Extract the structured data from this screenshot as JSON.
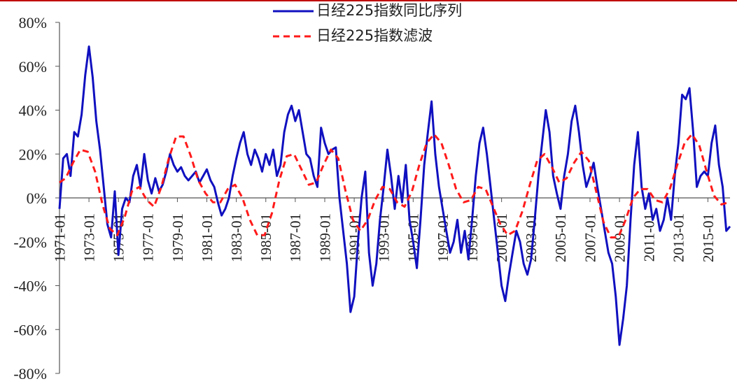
{
  "colors": {
    "accent_top": "#c00000",
    "series1": "#1010c0",
    "series2": "#ff1a1a",
    "axis": "#555555"
  },
  "chart_data": {
    "type": "line",
    "title": "",
    "xlabel": "",
    "ylabel": "",
    "ylim": [
      -0.8,
      0.8
    ],
    "xlim": [
      "1971-01",
      "2016-07"
    ],
    "y_ticks": [
      "80%",
      "60%",
      "40%",
      "20%",
      "0%",
      "-20%",
      "-40%",
      "-60%",
      "-80%"
    ],
    "y_tick_values": [
      0.8,
      0.6,
      0.4,
      0.2,
      0.0,
      -0.2,
      -0.4,
      -0.6,
      -0.8
    ],
    "x_ticks": [
      "1971-01",
      "1973-01",
      "1975-01",
      "1977-01",
      "1979-01",
      "1981-01",
      "1983-01",
      "1985-01",
      "1987-01",
      "1989-01",
      "1991-01",
      "1993-01",
      "1995-01",
      "1997-01",
      "1999-01",
      "2001-01",
      "2003-01",
      "2005-01",
      "2007-01",
      "2009-01",
      "2011-01",
      "2013-01",
      "2015-01"
    ],
    "grid": false,
    "legend": {
      "placement": "top-center"
    },
    "series": [
      {
        "name": "日经225指数同比序列",
        "style": "solid",
        "points": [
          [
            "1971-01",
            -0.05
          ],
          [
            "1971-04",
            0.18
          ],
          [
            "1971-07",
            0.2
          ],
          [
            "1971-10",
            0.1
          ],
          [
            "1972-01",
            0.3
          ],
          [
            "1972-04",
            0.28
          ],
          [
            "1972-07",
            0.38
          ],
          [
            "1972-10",
            0.56
          ],
          [
            "1973-01",
            0.69
          ],
          [
            "1973-04",
            0.55
          ],
          [
            "1973-07",
            0.35
          ],
          [
            "1973-10",
            0.22
          ],
          [
            "1974-01",
            0.05
          ],
          [
            "1974-04",
            -0.12
          ],
          [
            "1974-07",
            -0.18
          ],
          [
            "1974-10",
            0.03
          ],
          [
            "1975-01",
            -0.26
          ],
          [
            "1975-04",
            -0.05
          ],
          [
            "1975-07",
            0.0
          ],
          [
            "1975-10",
            -0.02
          ],
          [
            "1976-01",
            0.1
          ],
          [
            "1976-04",
            0.15
          ],
          [
            "1976-07",
            0.05
          ],
          [
            "1976-10",
            0.2
          ],
          [
            "1977-01",
            0.08
          ],
          [
            "1977-04",
            0.02
          ],
          [
            "1977-07",
            0.09
          ],
          [
            "1977-10",
            0.03
          ],
          [
            "1978-01",
            0.06
          ],
          [
            "1978-04",
            0.12
          ],
          [
            "1978-07",
            0.2
          ],
          [
            "1978-10",
            0.15
          ],
          [
            "1979-01",
            0.12
          ],
          [
            "1979-04",
            0.14
          ],
          [
            "1979-07",
            0.1
          ],
          [
            "1979-10",
            0.08
          ],
          [
            "1980-01",
            0.1
          ],
          [
            "1980-04",
            0.12
          ],
          [
            "1980-07",
            0.07
          ],
          [
            "1980-10",
            0.1
          ],
          [
            "1981-01",
            0.13
          ],
          [
            "1981-04",
            0.08
          ],
          [
            "1981-07",
            0.05
          ],
          [
            "1981-10",
            -0.02
          ],
          [
            "1982-01",
            -0.08
          ],
          [
            "1982-04",
            -0.05
          ],
          [
            "1982-07",
            0.0
          ],
          [
            "1982-10",
            0.1
          ],
          [
            "1983-01",
            0.18
          ],
          [
            "1983-04",
            0.25
          ],
          [
            "1983-07",
            0.3
          ],
          [
            "1983-10",
            0.2
          ],
          [
            "1984-01",
            0.15
          ],
          [
            "1984-04",
            0.22
          ],
          [
            "1984-07",
            0.18
          ],
          [
            "1984-10",
            0.12
          ],
          [
            "1985-01",
            0.2
          ],
          [
            "1985-04",
            0.15
          ],
          [
            "1985-07",
            0.22
          ],
          [
            "1985-10",
            0.1
          ],
          [
            "1986-01",
            0.15
          ],
          [
            "1986-04",
            0.3
          ],
          [
            "1986-07",
            0.38
          ],
          [
            "1986-10",
            0.42
          ],
          [
            "1987-01",
            0.35
          ],
          [
            "1987-04",
            0.4
          ],
          [
            "1987-07",
            0.3
          ],
          [
            "1987-10",
            0.2
          ],
          [
            "1988-01",
            0.18
          ],
          [
            "1988-04",
            0.1
          ],
          [
            "1988-07",
            0.05
          ],
          [
            "1988-10",
            0.32
          ],
          [
            "1989-01",
            0.25
          ],
          [
            "1989-04",
            0.2
          ],
          [
            "1989-07",
            0.22
          ],
          [
            "1989-10",
            0.23
          ],
          [
            "1990-01",
            0.0
          ],
          [
            "1990-04",
            -0.15
          ],
          [
            "1990-07",
            -0.3
          ],
          [
            "1990-10",
            -0.52
          ],
          [
            "1991-01",
            -0.45
          ],
          [
            "1991-04",
            -0.2
          ],
          [
            "1991-07",
            0.0
          ],
          [
            "1991-10",
            0.12
          ],
          [
            "1992-01",
            -0.25
          ],
          [
            "1992-04",
            -0.4
          ],
          [
            "1992-07",
            -0.3
          ],
          [
            "1992-10",
            -0.1
          ],
          [
            "1993-01",
            0.05
          ],
          [
            "1993-04",
            0.22
          ],
          [
            "1993-07",
            0.1
          ],
          [
            "1993-10",
            -0.05
          ],
          [
            "1994-01",
            0.1
          ],
          [
            "1994-04",
            -0.02
          ],
          [
            "1994-07",
            0.15
          ],
          [
            "1994-10",
            -0.1
          ],
          [
            "1995-01",
            -0.2
          ],
          [
            "1995-04",
            -0.32
          ],
          [
            "1995-07",
            -0.1
          ],
          [
            "1995-10",
            0.15
          ],
          [
            "1996-01",
            0.3
          ],
          [
            "1996-04",
            0.44
          ],
          [
            "1996-07",
            0.2
          ],
          [
            "1996-10",
            0.05
          ],
          [
            "1997-01",
            -0.05
          ],
          [
            "1997-04",
            -0.15
          ],
          [
            "1997-07",
            -0.25
          ],
          [
            "1997-10",
            -0.2
          ],
          [
            "1998-01",
            -0.1
          ],
          [
            "1998-04",
            -0.25
          ],
          [
            "1998-07",
            -0.15
          ],
          [
            "1998-10",
            -0.28
          ],
          [
            "1999-01",
            -0.1
          ],
          [
            "1999-04",
            0.1
          ],
          [
            "1999-07",
            0.25
          ],
          [
            "1999-10",
            0.32
          ],
          [
            "2000-01",
            0.2
          ],
          [
            "2000-04",
            0.05
          ],
          [
            "2000-07",
            -0.1
          ],
          [
            "2000-10",
            -0.25
          ],
          [
            "2001-01",
            -0.4
          ],
          [
            "2001-04",
            -0.47
          ],
          [
            "2001-07",
            -0.35
          ],
          [
            "2001-10",
            -0.25
          ],
          [
            "2002-01",
            -0.15
          ],
          [
            "2002-04",
            -0.2
          ],
          [
            "2002-07",
            -0.3
          ],
          [
            "2002-10",
            -0.35
          ],
          [
            "2003-01",
            -0.28
          ],
          [
            "2003-04",
            -0.1
          ],
          [
            "2003-07",
            0.1
          ],
          [
            "2003-10",
            0.25
          ],
          [
            "2004-01",
            0.4
          ],
          [
            "2004-04",
            0.3
          ],
          [
            "2004-07",
            0.1
          ],
          [
            "2004-10",
            0.02
          ],
          [
            "2005-01",
            -0.05
          ],
          [
            "2005-04",
            0.1
          ],
          [
            "2005-07",
            0.2
          ],
          [
            "2005-10",
            0.35
          ],
          [
            "2006-01",
            0.42
          ],
          [
            "2006-04",
            0.3
          ],
          [
            "2006-07",
            0.15
          ],
          [
            "2006-10",
            0.05
          ],
          [
            "2007-01",
            0.1
          ],
          [
            "2007-04",
            0.16
          ],
          [
            "2007-07",
            0.05
          ],
          [
            "2007-10",
            -0.05
          ],
          [
            "2008-01",
            -0.15
          ],
          [
            "2008-04",
            -0.25
          ],
          [
            "2008-07",
            -0.3
          ],
          [
            "2008-10",
            -0.45
          ],
          [
            "2009-01",
            -0.67
          ],
          [
            "2009-04",
            -0.55
          ],
          [
            "2009-07",
            -0.4
          ],
          [
            "2009-10",
            -0.1
          ],
          [
            "2010-01",
            0.15
          ],
          [
            "2010-04",
            0.3
          ],
          [
            "2010-07",
            0.05
          ],
          [
            "2010-10",
            -0.05
          ],
          [
            "2011-01",
            0.02
          ],
          [
            "2011-04",
            -0.1
          ],
          [
            "2011-07",
            -0.05
          ],
          [
            "2011-10",
            -0.15
          ],
          [
            "2012-01",
            -0.1
          ],
          [
            "2012-04",
            0.0
          ],
          [
            "2012-07",
            -0.1
          ],
          [
            "2012-10",
            0.1
          ],
          [
            "2013-01",
            0.25
          ],
          [
            "2013-04",
            0.47
          ],
          [
            "2013-07",
            0.45
          ],
          [
            "2013-10",
            0.5
          ],
          [
            "2014-01",
            0.3
          ],
          [
            "2014-04",
            0.05
          ],
          [
            "2014-07",
            0.1
          ],
          [
            "2014-10",
            0.12
          ],
          [
            "2015-01",
            0.1
          ],
          [
            "2015-04",
            0.25
          ],
          [
            "2015-07",
            0.33
          ],
          [
            "2015-10",
            0.15
          ],
          [
            "2016-01",
            0.05
          ],
          [
            "2016-04",
            -0.15
          ],
          [
            "2016-07",
            -0.13
          ]
        ]
      },
      {
        "name": "日经225指数滤波",
        "style": "dashed",
        "points": [
          [
            "1971-01",
            0.07
          ],
          [
            "1971-06",
            0.09
          ],
          [
            "1971-12",
            0.16
          ],
          [
            "1972-06",
            0.22
          ],
          [
            "1972-12",
            0.21
          ],
          [
            "1973-06",
            0.12
          ],
          [
            "1973-12",
            -0.03
          ],
          [
            "1974-06",
            -0.14
          ],
          [
            "1974-12",
            -0.17
          ],
          [
            "1975-06",
            -0.09
          ],
          [
            "1975-12",
            0.03
          ],
          [
            "1976-06",
            0.05
          ],
          [
            "1976-12",
            -0.01
          ],
          [
            "1977-06",
            -0.04
          ],
          [
            "1977-12",
            0.05
          ],
          [
            "1978-06",
            0.18
          ],
          [
            "1978-12",
            0.28
          ],
          [
            "1979-06",
            0.28
          ],
          [
            "1979-12",
            0.19
          ],
          [
            "1980-06",
            0.08
          ],
          [
            "1980-12",
            0.02
          ],
          [
            "1981-06",
            -0.02
          ],
          [
            "1981-12",
            -0.02
          ],
          [
            "1982-06",
            0.04
          ],
          [
            "1982-12",
            0.06
          ],
          [
            "1983-06",
            0.0
          ],
          [
            "1983-12",
            -0.1
          ],
          [
            "1984-06",
            -0.17
          ],
          [
            "1984-12",
            -0.17
          ],
          [
            "1985-06",
            -0.07
          ],
          [
            "1985-12",
            0.08
          ],
          [
            "1986-06",
            0.19
          ],
          [
            "1986-12",
            0.2
          ],
          [
            "1987-06",
            0.13
          ],
          [
            "1987-12",
            0.06
          ],
          [
            "1988-06",
            0.07
          ],
          [
            "1988-12",
            0.15
          ],
          [
            "1989-06",
            0.22
          ],
          [
            "1989-12",
            0.18
          ],
          [
            "1990-06",
            0.03
          ],
          [
            "1990-12",
            -0.1
          ],
          [
            "1991-06",
            -0.15
          ],
          [
            "1991-12",
            -0.1
          ],
          [
            "1992-06",
            -0.01
          ],
          [
            "1992-12",
            0.05
          ],
          [
            "1993-06",
            0.04
          ],
          [
            "1993-12",
            -0.02
          ],
          [
            "1994-06",
            -0.04
          ],
          [
            "1994-12",
            0.03
          ],
          [
            "1995-06",
            0.15
          ],
          [
            "1995-12",
            0.25
          ],
          [
            "1996-06",
            0.29
          ],
          [
            "1996-12",
            0.25
          ],
          [
            "1997-06",
            0.15
          ],
          [
            "1997-12",
            0.04
          ],
          [
            "1998-06",
            -0.02
          ],
          [
            "1998-12",
            -0.01
          ],
          [
            "1999-06",
            0.05
          ],
          [
            "1999-12",
            0.04
          ],
          [
            "2000-06",
            -0.04
          ],
          [
            "2000-12",
            -0.12
          ],
          [
            "2001-06",
            -0.17
          ],
          [
            "2001-12",
            -0.15
          ],
          [
            "2002-06",
            -0.06
          ],
          [
            "2002-12",
            0.06
          ],
          [
            "2003-06",
            0.17
          ],
          [
            "2003-12",
            0.2
          ],
          [
            "2004-06",
            0.14
          ],
          [
            "2004-12",
            0.07
          ],
          [
            "2005-06",
            0.09
          ],
          [
            "2005-12",
            0.16
          ],
          [
            "2006-06",
            0.21
          ],
          [
            "2006-12",
            0.17
          ],
          [
            "2007-06",
            0.03
          ],
          [
            "2007-12",
            -0.11
          ],
          [
            "2008-06",
            -0.18
          ],
          [
            "2008-12",
            -0.18
          ],
          [
            "2009-06",
            -0.1
          ],
          [
            "2009-12",
            0.0
          ],
          [
            "2010-06",
            0.04
          ],
          [
            "2010-12",
            0.04
          ],
          [
            "2011-06",
            -0.01
          ],
          [
            "2011-12",
            -0.02
          ],
          [
            "2012-06",
            0.04
          ],
          [
            "2012-12",
            0.15
          ],
          [
            "2013-06",
            0.25
          ],
          [
            "2013-12",
            0.29
          ],
          [
            "2014-06",
            0.24
          ],
          [
            "2014-12",
            0.12
          ],
          [
            "2015-06",
            0.01
          ],
          [
            "2015-12",
            -0.03
          ],
          [
            "2016-06",
            -0.02
          ]
        ]
      }
    ]
  }
}
